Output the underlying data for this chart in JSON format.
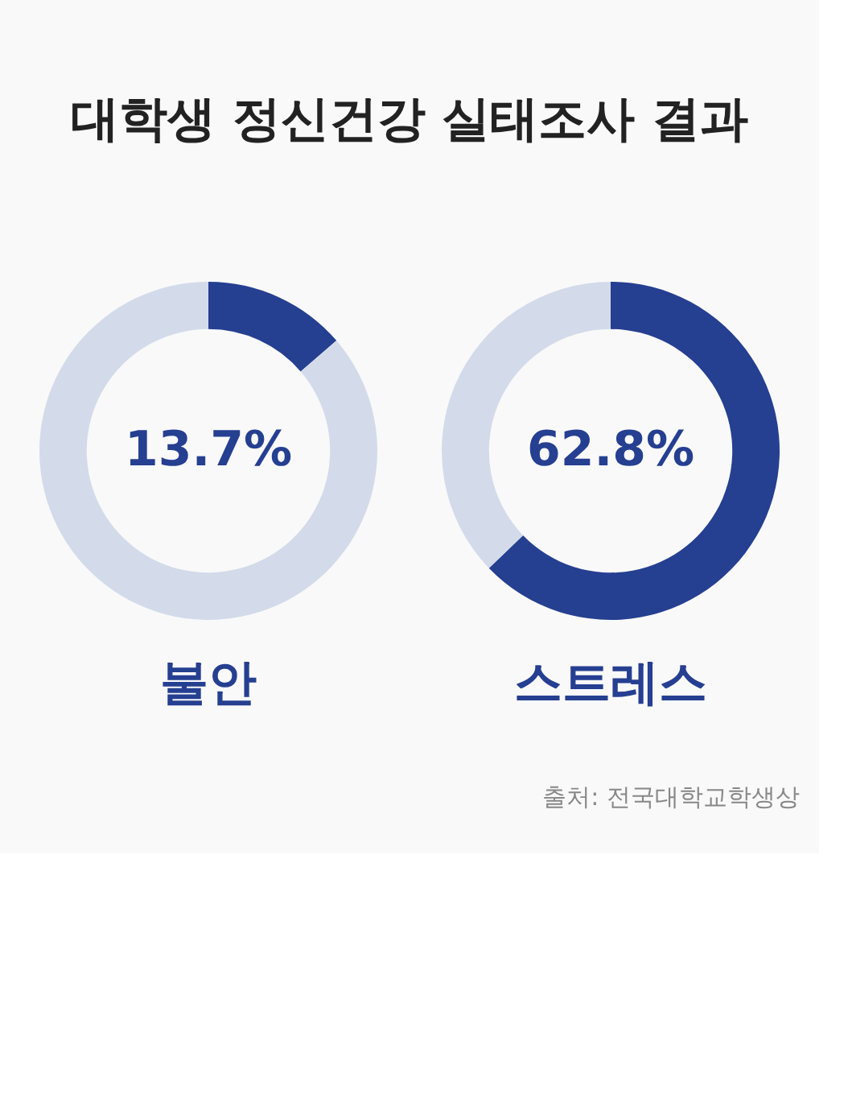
{
  "chart_data": [
    {
      "type": "donut",
      "title": "대학생 정신건강 실태조사 결과",
      "categories": [
        null,
        null
      ],
      "values": [
        13.7,
        86.3
      ],
      "colors": [
        "#253f91",
        "#d3dbea"
      ],
      "value_labels": [
        "13.7%",
        null
      ],
      "xlabel": "불안"
    },
    {
      "type": "donut",
      "categories": [
        null,
        null
      ],
      "values": [
        62.8,
        37.2
      ],
      "colors": [
        "#253f91",
        "#d3dbea"
      ],
      "value_labels": [
        "62.8%",
        null
      ],
      "xlabel": "스트레스",
      "annotations": [
        "출처: 전국대학교학생상"
      ]
    }
  ]
}
